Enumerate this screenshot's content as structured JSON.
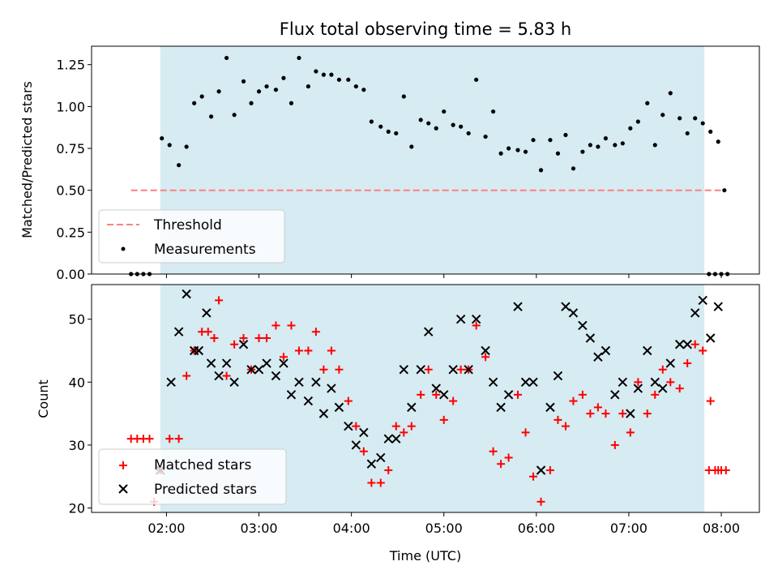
{
  "chart_data": [
    {
      "type": "scatter",
      "title": "Flux total observing time = 5.83 h",
      "ylabel": "Matched/Predicted stars",
      "xlabel": "",
      "ylim": [
        0,
        1.36
      ],
      "yticks": [
        "0.00",
        "0.25",
        "0.50",
        "0.75",
        "1.00",
        "1.25"
      ],
      "shaded_span": [
        "01:56",
        "07:49"
      ],
      "legend_position": "lower-left",
      "series": [
        {
          "name": "Threshold",
          "style": "dashed-line",
          "color": "#ff7f7f",
          "x": [
            "01:37",
            "08:03"
          ],
          "y": [
            0.5,
            0.5
          ]
        },
        {
          "name": "Measurements",
          "style": "dot",
          "color": "#000000",
          "x": [
            "01:37",
            "01:41",
            "01:45",
            "01:49",
            "01:57",
            "02:02",
            "02:08",
            "02:13",
            "02:18",
            "02:23",
            "02:29",
            "02:34",
            "02:39",
            "02:44",
            "02:50",
            "02:55",
            "03:00",
            "03:05",
            "03:11",
            "03:16",
            "03:21",
            "03:26",
            "03:32",
            "03:37",
            "03:42",
            "03:47",
            "03:52",
            "03:58",
            "04:03",
            "04:08",
            "04:13",
            "04:19",
            "04:24",
            "04:29",
            "04:34",
            "04:39",
            "04:45",
            "04:50",
            "04:55",
            "05:00",
            "05:06",
            "05:11",
            "05:16",
            "05:21",
            "05:27",
            "05:32",
            "05:37",
            "05:42",
            "05:48",
            "05:53",
            "05:58",
            "06:03",
            "06:09",
            "06:14",
            "06:19",
            "06:24",
            "06:30",
            "06:35",
            "06:40",
            "06:45",
            "06:51",
            "06:56",
            "07:01",
            "07:06",
            "07:12",
            "07:17",
            "07:22",
            "07:27",
            "07:33",
            "07:38",
            "07:43",
            "07:48",
            "07:53",
            "07:58",
            "08:02"
          ],
          "y": [
            0.0,
            0.0,
            0.0,
            0.0,
            0.81,
            0.77,
            0.65,
            0.76,
            1.02,
            1.06,
            0.94,
            1.09,
            1.29,
            0.95,
            1.15,
            1.02,
            1.09,
            1.12,
            1.1,
            1.17,
            1.02,
            1.29,
            1.12,
            1.21,
            1.19,
            1.19,
            1.16,
            1.16,
            1.12,
            1.1,
            0.91,
            0.88,
            0.85,
            0.84,
            1.06,
            0.76,
            0.92,
            0.9,
            0.87,
            0.97,
            0.89,
            0.88,
            0.84,
            1.16,
            0.82,
            0.97,
            0.72,
            0.75,
            0.74,
            0.73,
            0.8,
            0.62,
            0.8,
            0.72,
            0.83,
            0.63,
            0.73,
            0.77,
            0.76,
            0.81,
            0.77,
            0.78,
            0.87,
            0.91,
            1.02,
            0.77,
            0.95,
            1.08,
            0.93,
            0.84,
            0.93,
            0.9,
            0.85,
            0.79,
            0.5
          ]
        },
        {
          "name": "",
          "style": "dot",
          "color": "#000000",
          "x": [
            "07:52",
            "07:56",
            "08:00",
            "08:04"
          ],
          "y": [
            0.0,
            0.0,
            0.0,
            0.0
          ]
        }
      ]
    },
    {
      "type": "scatter",
      "title": "",
      "xlabel": "Time (UTC)",
      "ylabel": "Count",
      "ylim": [
        19.3,
        55.5
      ],
      "yticks": [
        "20",
        "30",
        "40",
        "50"
      ],
      "xticks": [
        "02:00",
        "03:00",
        "04:00",
        "05:00",
        "06:00",
        "07:00",
        "08:00"
      ],
      "shaded_span": [
        "01:56",
        "07:49"
      ],
      "legend_position": "lower-left",
      "series": [
        {
          "name": "Matched stars",
          "style": "plus",
          "color": "#ff0000",
          "x": [
            "01:37",
            "01:41",
            "01:45",
            "01:49",
            "01:52",
            "01:56",
            "02:02",
            "02:08",
            "02:13",
            "02:18",
            "02:23",
            "02:27",
            "02:31",
            "02:34",
            "02:39",
            "02:44",
            "02:50",
            "02:55",
            "03:00",
            "03:05",
            "03:11",
            "03:16",
            "03:21",
            "03:26",
            "03:32",
            "03:37",
            "03:42",
            "03:47",
            "03:52",
            "03:58",
            "04:03",
            "04:08",
            "04:13",
            "04:19",
            "04:24",
            "04:29",
            "04:34",
            "04:39",
            "04:45",
            "04:50",
            "04:55",
            "05:00",
            "05:06",
            "05:11",
            "05:16",
            "05:21",
            "05:27",
            "05:32",
            "05:37",
            "05:42",
            "05:48",
            "05:53",
            "05:58",
            "06:03",
            "06:09",
            "06:14",
            "06:19",
            "06:24",
            "06:30",
            "06:35",
            "06:40",
            "06:45",
            "06:51",
            "06:56",
            "07:01",
            "07:06",
            "07:12",
            "07:17",
            "07:22",
            "07:27",
            "07:33",
            "07:38",
            "07:43",
            "07:48",
            "07:53",
            "07:58",
            "08:03"
          ],
          "y": [
            31,
            31,
            31,
            31,
            21,
            26,
            31,
            31,
            41,
            45,
            48,
            48,
            47,
            53,
            41,
            46,
            47,
            42,
            47,
            47,
            49,
            44,
            49,
            45,
            45,
            48,
            42,
            45,
            42,
            37,
            33,
            29,
            24,
            24,
            26,
            33,
            32,
            33,
            38,
            42,
            38,
            34,
            37,
            42,
            42,
            49,
            44,
            29,
            27,
            28,
            38,
            32,
            25,
            21,
            26,
            34,
            33,
            37,
            38,
            35,
            36,
            35,
            30,
            35,
            32,
            40,
            35,
            38,
            42,
            40,
            39,
            43,
            46,
            45,
            37,
            26,
            26
          ]
        },
        {
          "name": "",
          "style": "plus",
          "color": "#ff0000",
          "x": [
            "07:52",
            "07:56",
            "08:00"
          ],
          "y": [
            26,
            26,
            26
          ]
        },
        {
          "name": "Predicted stars",
          "style": "x",
          "color": "#000000",
          "x": [
            "01:56",
            "02:03",
            "02:08",
            "02:13",
            "02:18",
            "02:21",
            "02:26",
            "02:29",
            "02:34",
            "02:39",
            "02:44",
            "02:50",
            "02:55",
            "03:00",
            "03:05",
            "03:11",
            "03:16",
            "03:21",
            "03:26",
            "03:32",
            "03:37",
            "03:42",
            "03:47",
            "03:52",
            "03:58",
            "04:03",
            "04:08",
            "04:13",
            "04:19",
            "04:24",
            "04:29",
            "04:34",
            "04:39",
            "04:45",
            "04:50",
            "04:55",
            "05:00",
            "05:06",
            "05:11",
            "05:16",
            "05:21",
            "05:27",
            "05:32",
            "05:37",
            "05:42",
            "05:48",
            "05:53",
            "05:58",
            "06:03",
            "06:09",
            "06:14",
            "06:19",
            "06:24",
            "06:30",
            "06:35",
            "06:40",
            "06:45",
            "06:51",
            "06:56",
            "07:01",
            "07:06",
            "07:12",
            "07:17",
            "07:22",
            "07:27",
            "07:33",
            "07:38",
            "07:43",
            "07:48",
            "07:53"
          ],
          "y": [
            26,
            40,
            48,
            54,
            45,
            45,
            51,
            43,
            41,
            43,
            40,
            46,
            42,
            42,
            43,
            41,
            43,
            38,
            40,
            37,
            40,
            35,
            39,
            36,
            33,
            30,
            32,
            27,
            28,
            31,
            31,
            42,
            36,
            42,
            48,
            39,
            38,
            42,
            50,
            42,
            50,
            45,
            40,
            36,
            38,
            52,
            40,
            40,
            26,
            36,
            41,
            52,
            51,
            49,
            47,
            44,
            45,
            38,
            40,
            35,
            39,
            45,
            40,
            39,
            43,
            46,
            46,
            51,
            53,
            47
          ]
        },
        {
          "name": "",
          "style": "x",
          "color": "#000000",
          "x": [
            "07:58"
          ],
          "y": [
            52
          ]
        }
      ]
    }
  ]
}
